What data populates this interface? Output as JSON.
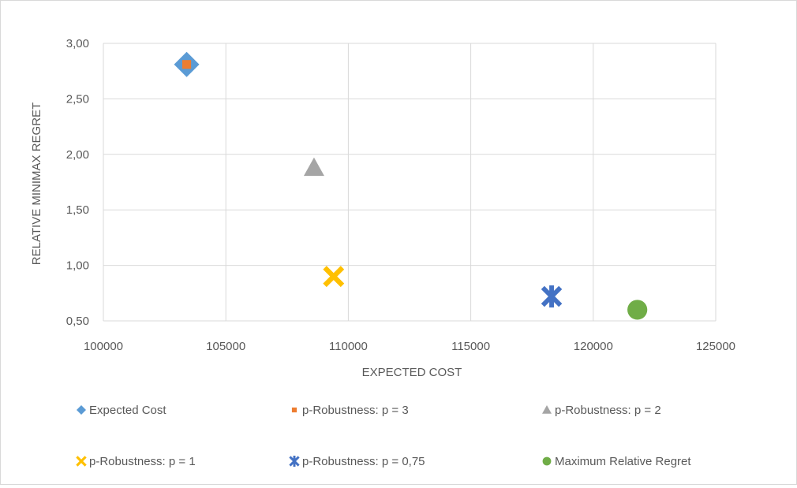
{
  "chart_data": {
    "type": "scatter",
    "title": "",
    "xlabel": "EXPECTED COST",
    "ylabel": "RELATIVE MINIMAX REGRET",
    "xlim": [
      100000,
      125000
    ],
    "ylim": [
      0.5,
      3.0
    ],
    "x_ticks": [
      100000,
      105000,
      110000,
      115000,
      120000,
      125000
    ],
    "x_tick_labels": [
      "100000",
      "105000",
      "110000",
      "115000",
      "120000",
      "125000"
    ],
    "y_ticks": [
      0.5,
      1.0,
      1.5,
      2.0,
      2.5,
      3.0
    ],
    "y_tick_labels": [
      "0,50",
      "1,00",
      "1,50",
      "2,00",
      "2,50",
      "3,00"
    ],
    "grid": true,
    "legend_position": "bottom",
    "series": [
      {
        "name": "Expected Cost",
        "marker": "diamond",
        "color": "#5b9bd5",
        "x": 103400,
        "y": 2.81
      },
      {
        "name": "p-Robustness: p = 3",
        "marker": "square",
        "color": "#ed7d31",
        "x": 103400,
        "y": 2.81
      },
      {
        "name": "p-Robustness: p = 2",
        "marker": "triangle",
        "color": "#a5a5a5",
        "x": 108600,
        "y": 1.88
      },
      {
        "name": "p-Robustness: p = 1",
        "marker": "x",
        "color": "#ffc000",
        "x": 109400,
        "y": 0.9
      },
      {
        "name": "p-Robustness: p = 0,75",
        "marker": "star",
        "color": "#4472c4",
        "x": 118300,
        "y": 0.72
      },
      {
        "name": "Maximum Relative Regret",
        "marker": "circle",
        "color": "#70ad47",
        "x": 121800,
        "y": 0.6
      }
    ]
  }
}
